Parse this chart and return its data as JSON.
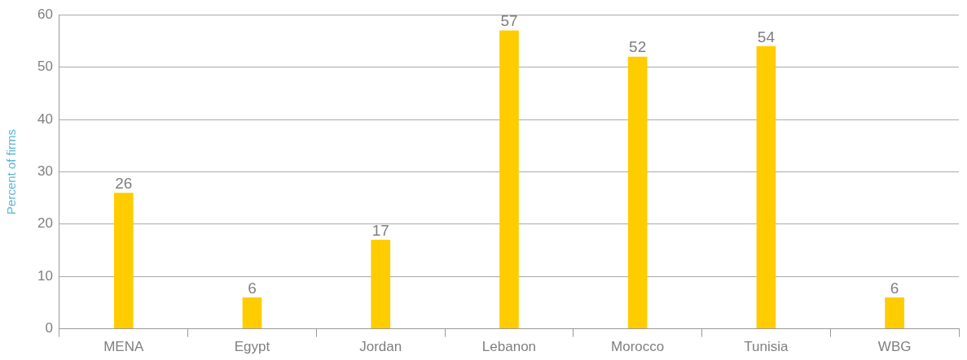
{
  "chart_data": {
    "type": "bar",
    "ylabel": "Percent of firms",
    "categories": [
      "MENA",
      "Egypt",
      "Jordan",
      "Lebanon",
      "Morocco",
      "Tunisia",
      "WBG"
    ],
    "values": [
      26,
      6,
      17,
      57,
      52,
      54,
      6
    ],
    "color": "#ffcc00",
    "ylim": [
      0,
      60
    ],
    "yticks": [
      0,
      10,
      20,
      30,
      40,
      50,
      60
    ],
    "grid": "y",
    "data_labels": true,
    "legend": false
  }
}
